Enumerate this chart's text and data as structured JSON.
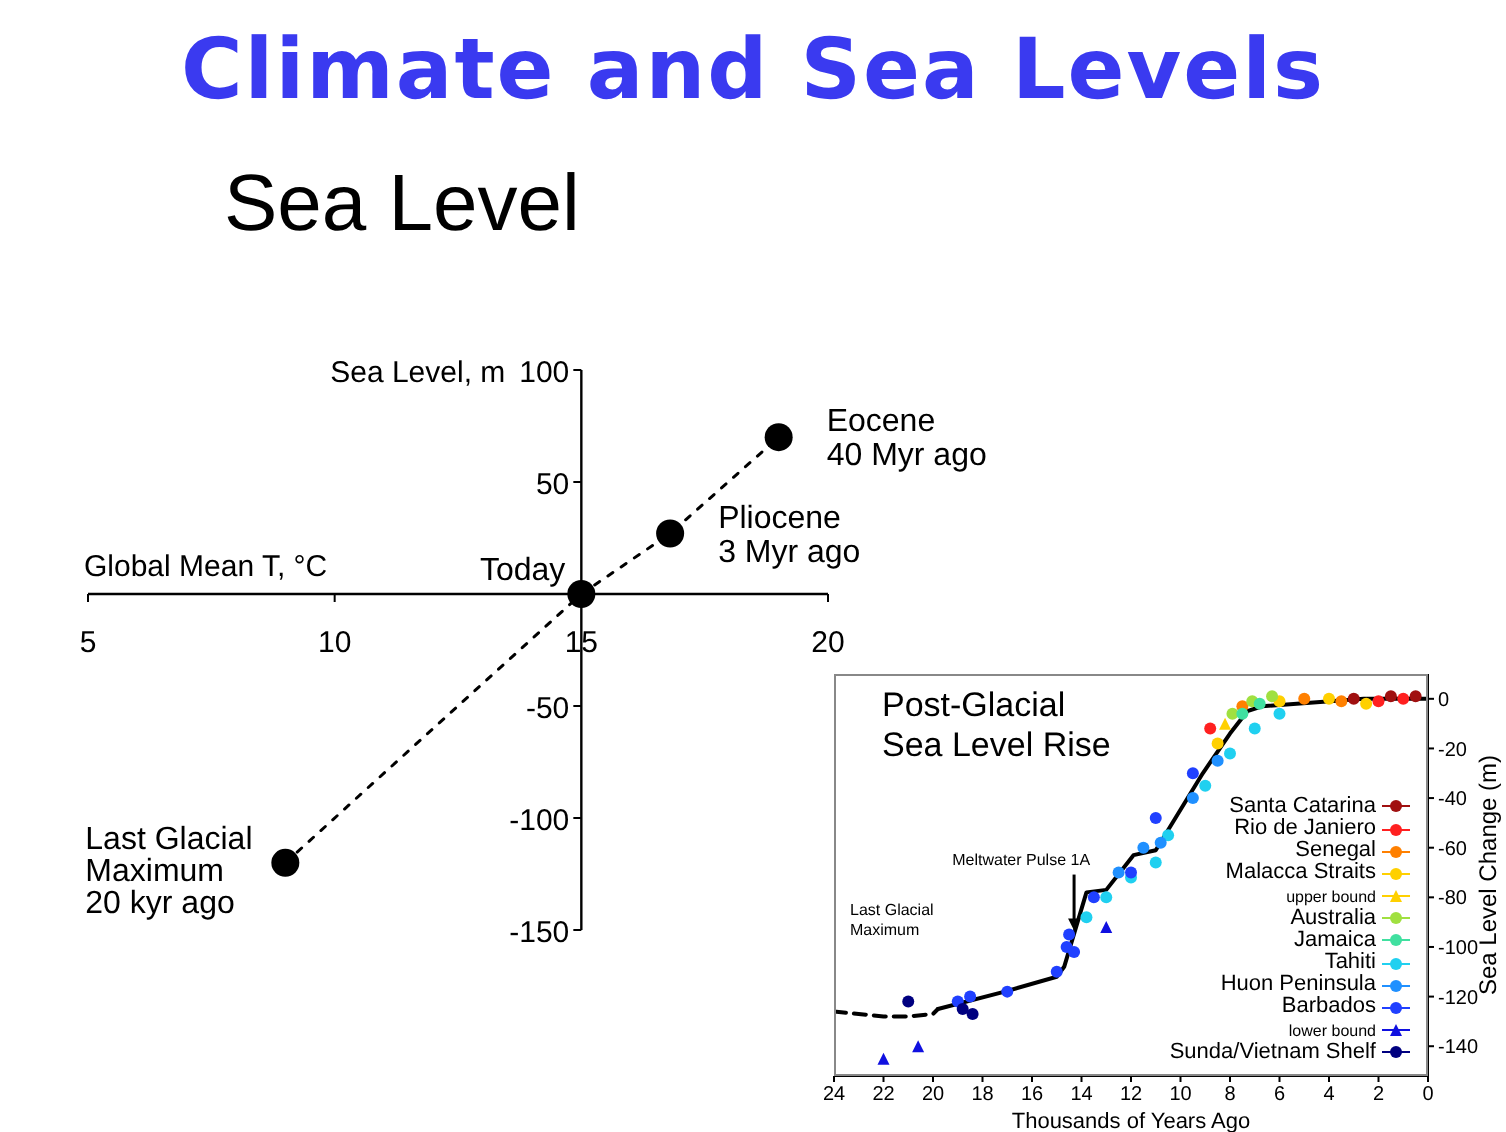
{
  "chart_data": [
    {
      "type": "scatter",
      "title": "Climate and Sea Levels",
      "subtitle": "Sea Level",
      "xlabel": "Global Mean T, °C",
      "ylabel": "Sea Level, m",
      "xlim": [
        5,
        20
      ],
      "xticks": [
        5,
        10,
        15,
        20
      ],
      "ylim": [
        -150,
        100
      ],
      "yticks": [
        -150,
        -100,
        -50,
        50,
        100
      ],
      "marker": "circle",
      "series": [
        {
          "type": "line",
          "color": "#000000",
          "line_style": "dotted",
          "marker": "none",
          "x": [
            9,
            15,
            16.8,
            19
          ],
          "values": [
            -120,
            0,
            27,
            70
          ]
        },
        {
          "type": "scatter",
          "color": "#000000",
          "x": [
            9,
            15,
            16.8,
            19
          ],
          "values": [
            -120,
            0,
            27,
            70
          ]
        }
      ],
      "annotations": [
        {
          "text": "Last Glacial\nMaximum\n20 kyr ago",
          "x": 9,
          "y": -120
        },
        {
          "text": "Today",
          "x": 15,
          "y": 0
        },
        {
          "text": "Pliocene\n3 Myr ago",
          "x": 16.8,
          "y": 27
        },
        {
          "text": "Eocene\n40 Myr ago",
          "x": 19,
          "y": 70
        }
      ]
    },
    {
      "type": "scatter",
      "title": "Post-Glacial\nSea Level Rise",
      "xlabel": "Thousands of Years Ago",
      "ylabel": "Sea Level Change (m)",
      "xlim": [
        24,
        0
      ],
      "xticks": [
        24,
        22,
        20,
        18,
        16,
        14,
        12,
        10,
        8,
        6,
        4,
        2,
        0
      ],
      "ylim": [
        -152,
        10
      ],
      "yticks": [
        -140,
        -120,
        -100,
        -80,
        -60,
        -40,
        -20,
        0
      ],
      "marker": "circle",
      "legend": "bottom right",
      "series": [
        {
          "type": "line",
          "color": "#000000",
          "line_style": "dashed",
          "marker": "none",
          "x": [
            24,
            22,
            21,
            20,
            19.8
          ],
          "values": [
            -126,
            -128,
            -128,
            -127,
            -125
          ]
        },
        {
          "type": "line",
          "color": "#000000",
          "marker": "none",
          "x": [
            19.8,
            17.1,
            15,
            14.7,
            13.8,
            13,
            11.9,
            11,
            9.1,
            8,
            7.3,
            6.7,
            2.6,
            0
          ],
          "values": [
            -125,
            -118,
            -112,
            -108,
            -78,
            -77,
            -63,
            -61,
            -30,
            -14,
            -5,
            -3,
            0,
            0
          ]
        },
        {
          "name": "Santa Catarina",
          "color": "#a01010",
          "x": [
            1.5,
            0.5,
            3
          ],
          "values": [
            1,
            1,
            0
          ]
        },
        {
          "name": "Rio de Janiero",
          "color": "#ff2020",
          "x": [
            8.8,
            2,
            1
          ],
          "values": [
            -12,
            -1,
            0
          ]
        },
        {
          "name": "Senegal",
          "color": "#ff8000",
          "x": [
            7.5,
            5,
            3.5
          ],
          "values": [
            -3,
            0,
            -1
          ]
        },
        {
          "name": "Malacca Straits",
          "color": "#ffd000",
          "x": [
            8.5,
            6,
            4,
            2.5
          ],
          "values": [
            -18,
            -1,
            0,
            -2
          ]
        },
        {
          "name": "upper bound",
          "color": "#ffd000",
          "marker": "triangle",
          "x": [
            8.2
          ],
          "values": [
            -10
          ]
        },
        {
          "name": "Australia",
          "color": "#a0e040",
          "x": [
            7.9,
            7.1,
            6.3
          ],
          "values": [
            -6,
            -1,
            1
          ]
        },
        {
          "name": "Jamaica",
          "color": "#40e0a0",
          "x": [
            7.5,
            6.8
          ],
          "values": [
            -6,
            -2
          ]
        },
        {
          "name": "Tahiti",
          "color": "#20d0f0",
          "x": [
            13.8,
            13,
            12,
            11,
            10.5,
            9,
            8,
            7,
            6
          ],
          "values": [
            -88,
            -80,
            -72,
            -66,
            -55,
            -35,
            -22,
            -12,
            -6
          ]
        },
        {
          "name": "Huon Peninsula",
          "color": "#2090ff",
          "x": [
            12.5,
            11.5,
            10.8,
            9.5,
            8.5
          ],
          "values": [
            -70,
            -60,
            -58,
            -40,
            -25
          ]
        },
        {
          "name": "Barbados",
          "color": "#2040ff",
          "x": [
            19,
            18.5,
            17,
            15,
            14.6,
            14.5,
            14.3,
            13.5,
            12,
            11,
            9.5
          ],
          "values": [
            -122,
            -120,
            -118,
            -110,
            -100,
            -95,
            -102,
            -80,
            -70,
            -48,
            -30
          ]
        },
        {
          "name": "lower bound",
          "color": "#1010e0",
          "marker": "triangle",
          "x": [
            22,
            20.6,
            13
          ],
          "values": [
            -145,
            -140,
            -92
          ]
        },
        {
          "name": "Sunda/Vietnam Shelf",
          "color": "#000080",
          "x": [
            21,
            18.8,
            18.4
          ],
          "values": [
            -122,
            -125,
            -127
          ]
        }
      ],
      "annotations": [
        {
          "text": "Meltwater Pulse 1A",
          "x": 14.3,
          "y": -95
        },
        "Last Glacial\nMaximum"
      ]
    }
  ]
}
